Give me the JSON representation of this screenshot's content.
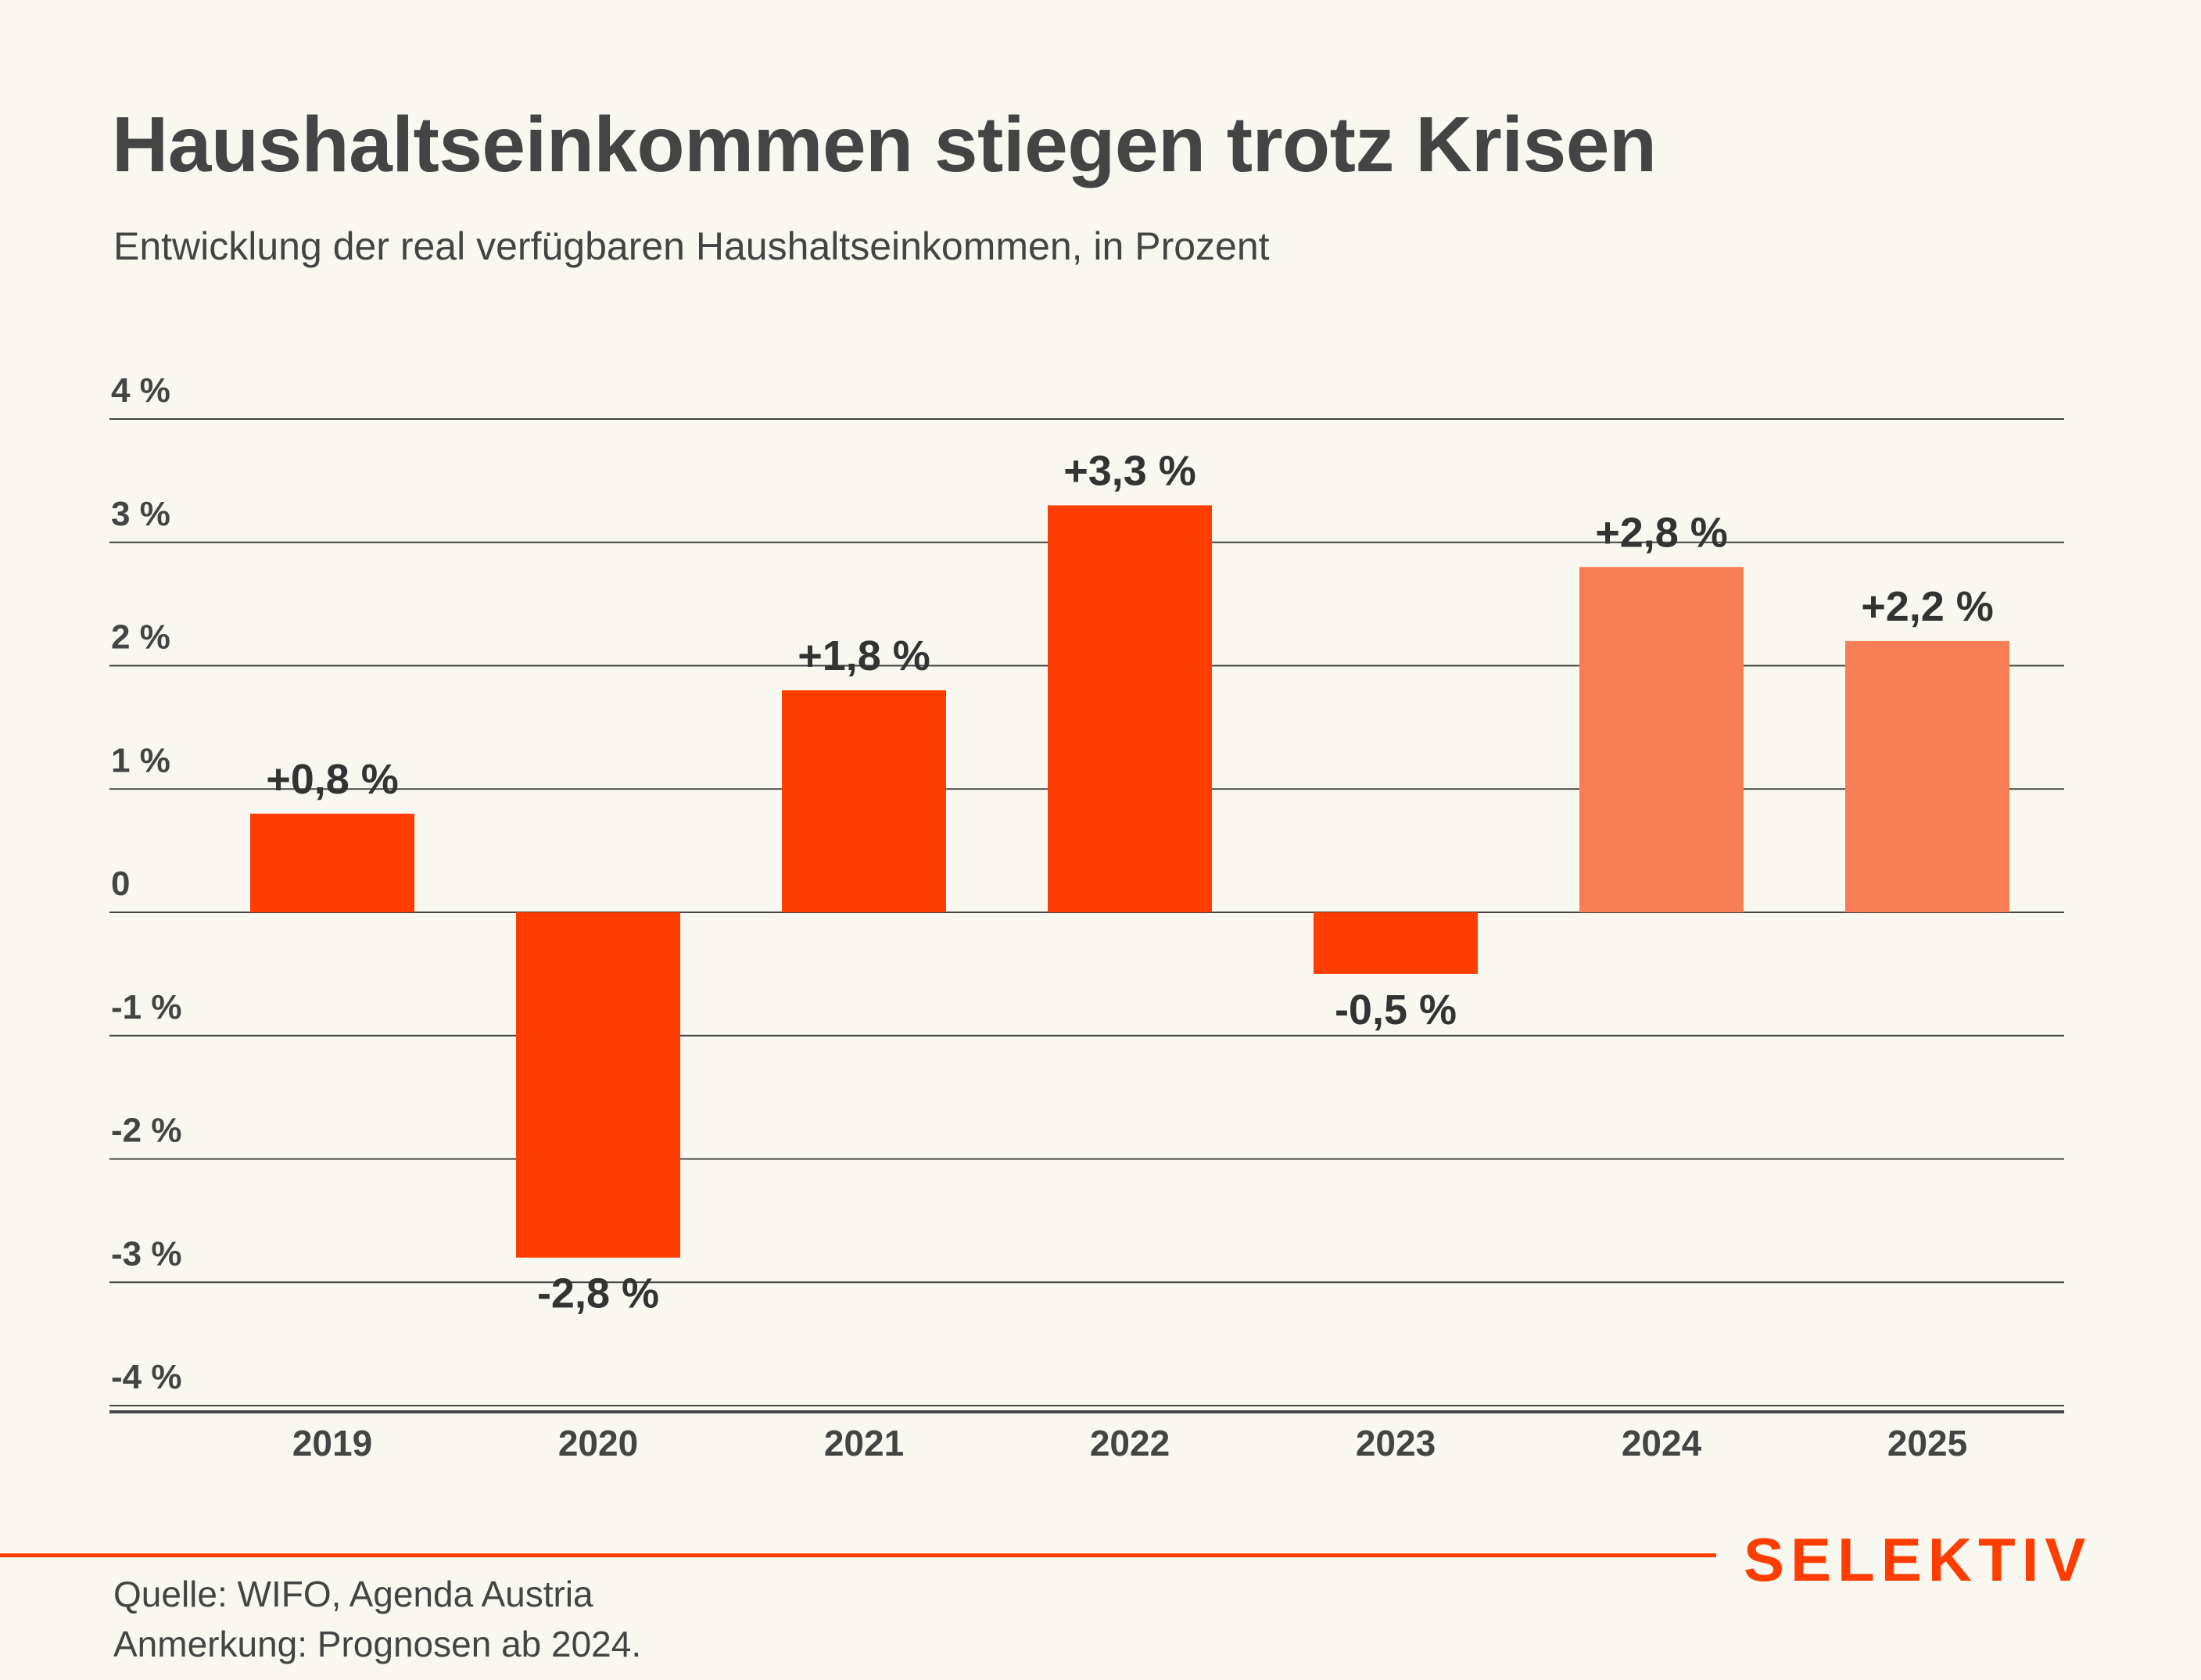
{
  "header": {
    "title": "Haushaltseinkommen stiegen trotz Krisen",
    "subtitle": "Entwicklung der real verfügbaren Haushaltseinkommen, in Prozent"
  },
  "footer": {
    "source": "Quelle: WIFO, Agenda Austria",
    "note": "Anmerkung: Prognosen ab 2024.",
    "logo": "SELEKTIV"
  },
  "colors": {
    "actual": "#FF3D00",
    "forecast": "#F77D55",
    "text": "#444444",
    "label": "#333333",
    "grid": "#444444",
    "brand": "#FF3D00",
    "background": "#F8F7F0"
  },
  "chart_data": {
    "type": "bar",
    "title": "Haushaltseinkommen stiegen trotz Krisen",
    "subtitle": "Entwicklung der real verfügbaren Haushaltseinkommen, in Prozent",
    "xlabel": "",
    "ylabel": "",
    "categories": [
      "2019",
      "2020",
      "2021",
      "2022",
      "2023",
      "2024",
      "2025"
    ],
    "values": [
      0.8,
      -2.8,
      1.8,
      3.3,
      -0.5,
      2.8,
      2.2
    ],
    "data_labels": [
      "+0,8 %",
      "-2,8 %",
      "+1,8 %",
      "+3,3 %",
      "-0,5 %",
      "+2,8 %",
      "+2,2 %"
    ],
    "forecast": [
      false,
      false,
      false,
      false,
      false,
      true,
      true
    ],
    "ylim": [
      -4,
      4
    ],
    "yticks": [
      4,
      3,
      2,
      1,
      0,
      -1,
      -2,
      -3,
      -4
    ],
    "ytick_labels": [
      "4 %",
      "3 %",
      "2 %",
      "1 %",
      "0",
      "-1 %",
      "-2 %",
      "-3 %",
      "-4 %"
    ],
    "grid": true,
    "legend": "none"
  }
}
